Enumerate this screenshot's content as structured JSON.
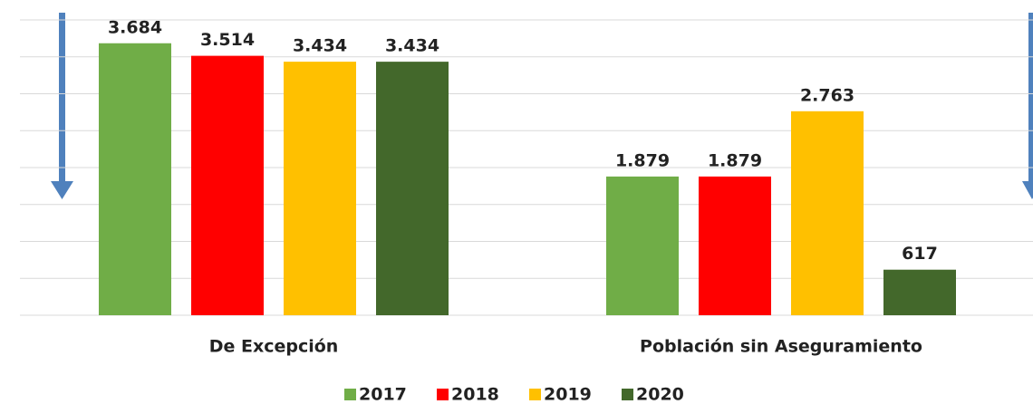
{
  "chart_data": {
    "type": "bar",
    "categories": [
      "De Excepción",
      "Población sin Aseguramiento"
    ],
    "series": [
      {
        "name": "2017",
        "color": "#70ad47",
        "values": [
          3684,
          1879
        ],
        "value_labels": [
          "3.684",
          "1.879"
        ]
      },
      {
        "name": "2018",
        "color": "#ff0000",
        "values": [
          3514,
          1879
        ],
        "value_labels": [
          "3.514",
          "1.879"
        ]
      },
      {
        "name": "2019",
        "color": "#ffc000",
        "values": [
          3434,
          2763
        ],
        "value_labels": [
          "3.434",
          "2.763"
        ]
      },
      {
        "name": "2020",
        "color": "#43682b",
        "values": [
          3434,
          617
        ],
        "value_labels": [
          "3.434",
          "617"
        ]
      }
    ],
    "ylim": [
      0,
      4000
    ],
    "yticks": [
      0,
      500,
      1000,
      1500,
      2000,
      2500,
      3000,
      3500,
      4000
    ],
    "grid": true,
    "legend": "bottom"
  }
}
